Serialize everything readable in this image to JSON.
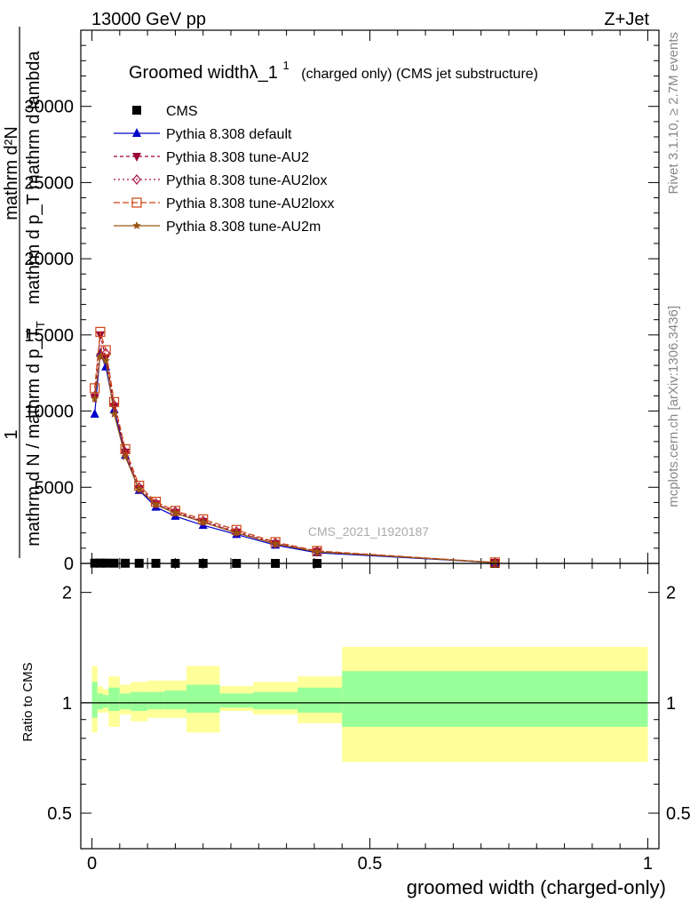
{
  "header": {
    "energy_label": "13000 GeV pp",
    "process_label": "Z+Jet"
  },
  "side_labels": {
    "rivet": "Rivet 3.1.10, ≥ 2.7M events",
    "mcplots": "mcplots.cern.ch [arXiv:1306.3436]"
  },
  "watermark": "CMS_2021_I1920187",
  "chart_data": [
    {
      "type": "line",
      "title": "Groomed widthλ_1",
      "title_sup": "1",
      "title_note": "(charged only) (CMS jet substructure)",
      "ylabel_num": "1",
      "ylabel_den": "mathrm d N / mathrm d p_T",
      "ylabel_den_sub": "T",
      "ylabel_frac_num": "mathrm d²N",
      "ylabel_frac_den": "mathrm d p_T mathrm d lambda",
      "ylim": [
        0,
        35000
      ],
      "xlim": [
        -0.02,
        1.02
      ],
      "yticks": [
        0,
        5000,
        10000,
        15000,
        20000,
        25000,
        30000
      ],
      "ytick_labels": [
        "0",
        "5000",
        "10000",
        "15000",
        "20000",
        "25000",
        "30000"
      ],
      "grid": false,
      "legend_position": "top-left",
      "series": [
        {
          "name": "CMS",
          "color": "#000000",
          "marker": "square-filled",
          "dash": "none",
          "x": [
            0.005,
            0.015,
            0.025,
            0.04,
            0.06,
            0.085,
            0.115,
            0.15,
            0.2,
            0.26,
            0.33,
            0.405,
            0.725
          ],
          "y": [
            18,
            20,
            19,
            16,
            12,
            9,
            6,
            4,
            3,
            2,
            1.5,
            1,
            0.1
          ]
        },
        {
          "name": "Pythia 8.308 default",
          "color": "#0000cc",
          "marker": "triangle-up-filled",
          "dash": "none",
          "x": [
            0.005,
            0.015,
            0.025,
            0.04,
            0.06,
            0.085,
            0.115,
            0.15,
            0.2,
            0.26,
            0.33,
            0.405,
            0.725
          ],
          "y": [
            9800,
            13800,
            12900,
            10100,
            7100,
            4800,
            3700,
            3100,
            2500,
            1900,
            1200,
            700,
            50
          ]
        },
        {
          "name": "Pythia 8.308 tune-AU2",
          "color": "#990033",
          "marker": "triangle-down-filled",
          "dash": "4,3",
          "x": [
            0.005,
            0.015,
            0.025,
            0.04,
            0.06,
            0.085,
            0.115,
            0.15,
            0.2,
            0.26,
            0.33,
            0.405,
            0.725
          ],
          "y": [
            10900,
            15000,
            13500,
            10300,
            7300,
            4900,
            3900,
            3350,
            2750,
            2050,
            1300,
            780,
            60
          ]
        },
        {
          "name": "Pythia 8.308 tune-AU2lox",
          "color": "#aa1144",
          "marker": "diamond-open",
          "dash": "2,3",
          "x": [
            0.005,
            0.015,
            0.025,
            0.04,
            0.06,
            0.085,
            0.115,
            0.15,
            0.2,
            0.26,
            0.33,
            0.405,
            0.725
          ],
          "y": [
            11000,
            13700,
            13800,
            10400,
            7300,
            5000,
            3950,
            3400,
            2800,
            2100,
            1350,
            800,
            60
          ]
        },
        {
          "name": "Pythia 8.308 tune-AU2loxx",
          "color": "#cc4411",
          "marker": "square-open",
          "dash": "7,3",
          "x": [
            0.005,
            0.015,
            0.025,
            0.04,
            0.06,
            0.085,
            0.115,
            0.15,
            0.2,
            0.26,
            0.33,
            0.405,
            0.725
          ],
          "y": [
            11500,
            15200,
            14000,
            10600,
            7500,
            5100,
            4050,
            3450,
            2900,
            2200,
            1400,
            820,
            65
          ]
        },
        {
          "name": "Pythia 8.308 tune-AU2m",
          "color": "#995511",
          "marker": "star-filled",
          "dash": "none",
          "x": [
            0.005,
            0.015,
            0.025,
            0.04,
            0.06,
            0.085,
            0.115,
            0.15,
            0.2,
            0.26,
            0.33,
            0.405,
            0.725
          ],
          "y": [
            10800,
            13600,
            13300,
            9800,
            7000,
            4850,
            3850,
            3300,
            2700,
            2000,
            1280,
            760,
            55
          ]
        }
      ]
    },
    {
      "type": "area",
      "ylabel": "Ratio to CMS",
      "xlabel": "groomed width (charged-only)",
      "xlim": [
        -0.02,
        1.02
      ],
      "ylim": [
        0.4,
        2.4
      ],
      "log_y": true,
      "xticks": [
        0,
        0.5,
        1
      ],
      "xtick_labels": [
        "0",
        "0.5",
        "1"
      ],
      "yticks": [
        0.5,
        1,
        2
      ],
      "ytick_labels": [
        "0.5",
        "1",
        "2"
      ],
      "reference_line": 1,
      "bins": {
        "edges": [
          0,
          0.01,
          0.02,
          0.03,
          0.05,
          0.07,
          0.1,
          0.13,
          0.17,
          0.23,
          0.29,
          0.37,
          0.45,
          1.0
        ],
        "green_lo": [
          0.91,
          0.96,
          0.97,
          0.95,
          0.96,
          0.95,
          0.96,
          0.96,
          0.94,
          0.97,
          0.96,
          0.94,
          0.86
        ],
        "green_hi": [
          1.14,
          1.06,
          1.05,
          1.1,
          1.06,
          1.07,
          1.07,
          1.08,
          1.12,
          1.06,
          1.07,
          1.1,
          1.22
        ],
        "yellow_lo": [
          0.83,
          0.94,
          0.94,
          0.86,
          0.93,
          0.89,
          0.91,
          0.91,
          0.83,
          0.95,
          0.93,
          0.88,
          0.69
        ],
        "yellow_hi": [
          1.26,
          1.11,
          1.09,
          1.18,
          1.12,
          1.14,
          1.15,
          1.15,
          1.26,
          1.11,
          1.14,
          1.18,
          1.42
        ]
      },
      "band_colors": {
        "green": "#99ff99",
        "yellow": "#ffff99"
      }
    }
  ]
}
